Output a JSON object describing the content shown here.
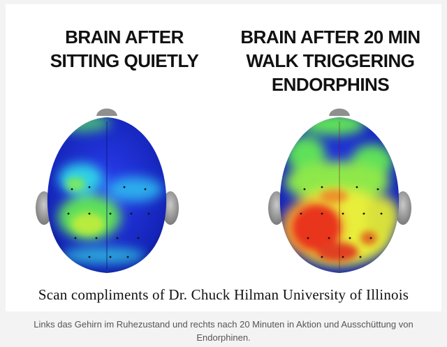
{
  "image": {
    "left_title": "BRAIN AFTER\nSITTING QUIETLY",
    "right_title": "BRAIN AFTER 20 MIN\nWALK TRIGGERING\nENDORPHINS",
    "credit": "Scan compliments of Dr. Chuck Hilman University of Illinois"
  },
  "caption": "Links das Gehirn im Ruhezustand und rechts nach 20 Minuten in Aktion und Ausschüttung von Endorphinen.",
  "colors": {
    "scan_blue": "#1a2fd6",
    "scan_cyan": "#2fd0e8",
    "scan_green": "#5fe05a",
    "scan_yellow": "#e8ef3a",
    "scan_red": "#e8351a"
  }
}
